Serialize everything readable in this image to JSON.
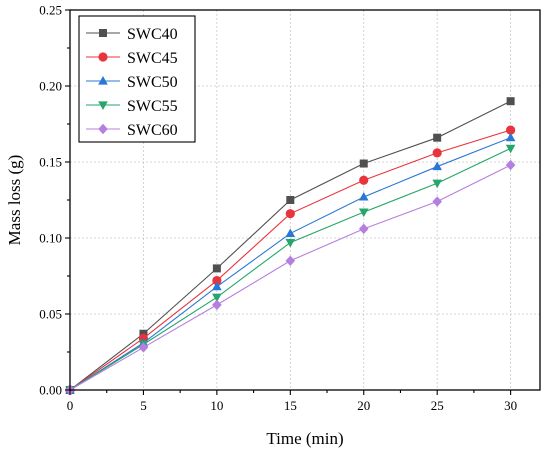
{
  "chart_data": {
    "type": "line",
    "xlabel": "Time (min)",
    "ylabel": "Mass loss (g)",
    "xlim": [
      0,
      32
    ],
    "ylim": [
      0,
      0.25
    ],
    "grid": true,
    "legend_position": "top-left",
    "x": [
      0,
      5,
      10,
      15,
      20,
      25,
      30
    ],
    "x_ticks": [
      "0",
      "5",
      "10",
      "15",
      "20",
      "25",
      "30"
    ],
    "y_ticks": [
      "0.00",
      "0.05",
      "0.10",
      "0.15",
      "0.20",
      "0.25"
    ],
    "series": [
      {
        "name": "SWC40",
        "color": "#505050",
        "marker": "square",
        "values": [
          0,
          0.037,
          0.08,
          0.125,
          0.149,
          0.166,
          0.19
        ]
      },
      {
        "name": "SWC45",
        "color": "#e8343c",
        "marker": "circle",
        "values": [
          0,
          0.034,
          0.072,
          0.116,
          0.138,
          0.156,
          0.171
        ]
      },
      {
        "name": "SWC50",
        "color": "#2a78d6",
        "marker": "triangle-up",
        "values": [
          0,
          0.031,
          0.068,
          0.103,
          0.127,
          0.147,
          0.166
        ]
      },
      {
        "name": "SWC55",
        "color": "#26a66a",
        "marker": "triangle-down",
        "values": [
          0,
          0.03,
          0.061,
          0.097,
          0.117,
          0.136,
          0.159
        ]
      },
      {
        "name": "SWC60",
        "color": "#b57fe0",
        "marker": "diamond",
        "values": [
          0,
          0.028,
          0.056,
          0.085,
          0.106,
          0.124,
          0.148
        ]
      }
    ]
  }
}
